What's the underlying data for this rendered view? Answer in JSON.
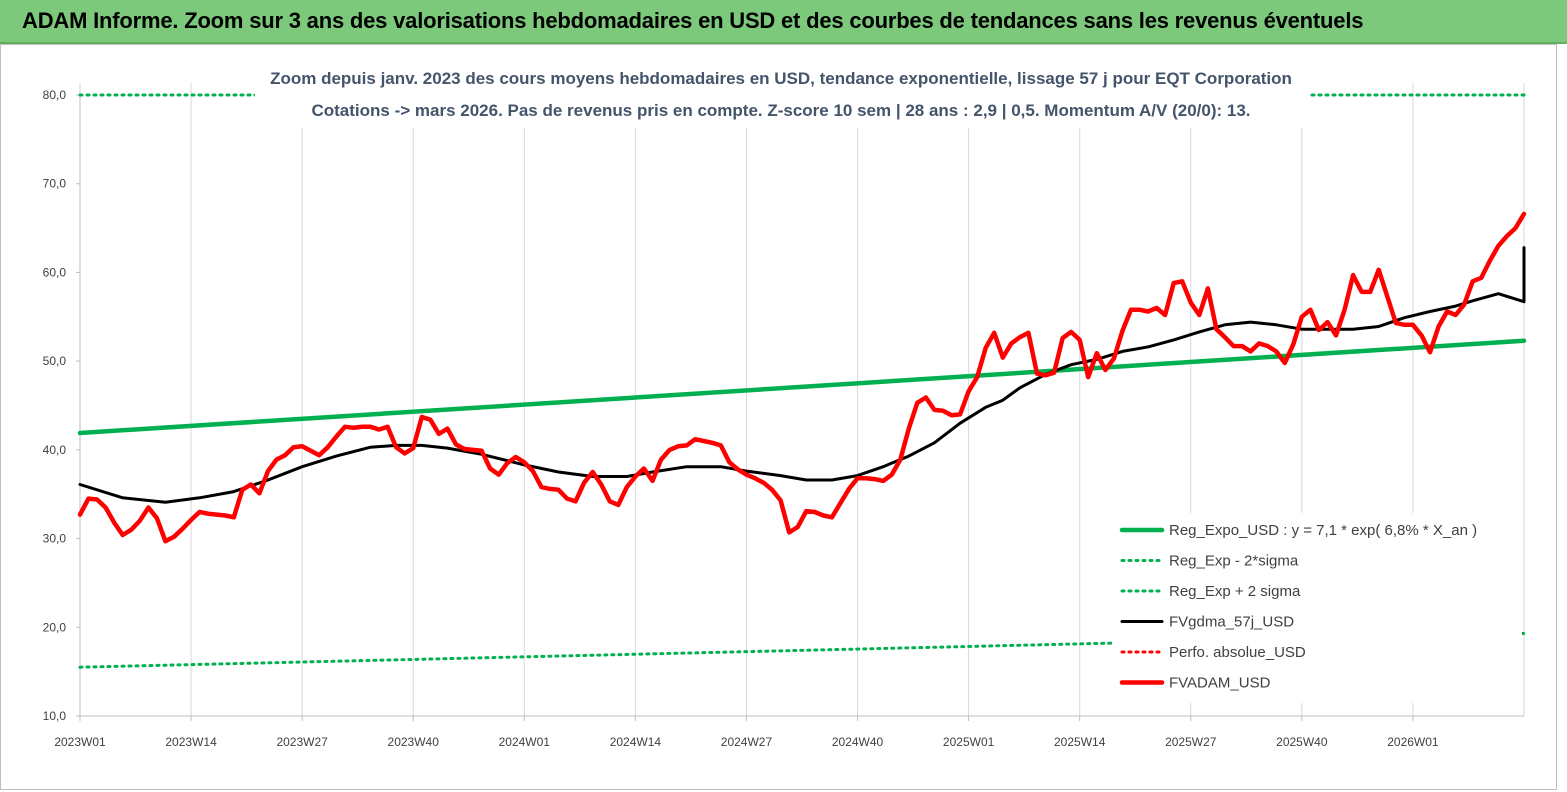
{
  "header": {
    "title": "ADAM Informe. Zoom sur 3 ans des valorisations hebdomadaires en USD et des courbes de tendances sans les revenus éventuels"
  },
  "colors": {
    "title_bg": "#7cc97b",
    "reg_expo": "#00b050",
    "fv_gdma": "#000000",
    "fv_adam": "#ff0000",
    "subtitle": "#44546a"
  },
  "chart_data": {
    "type": "line",
    "subtitle": [
      "Zoom depuis janv. 2023 des cours moyens hebdomadaires en USD, tendance exponentielle, lissage 57 j pour EQT Corporation",
      "Cotations -> mars 2026. Pas de revenus pris en  compte. Z-score 10 sem  | 28 ans : 2,9  | 0,5. Momentum A/V (20/0): 13."
    ],
    "ylim": [
      10,
      80
    ],
    "yticks": [
      "10,0",
      "20,0",
      "30,0",
      "40,0",
      "50,0",
      "60,0",
      "70,0",
      "80,0"
    ],
    "xticks": [
      "2023W01",
      "2023W14",
      "2023W27",
      "2023W40",
      "2024W01",
      "2024W14",
      "2024W27",
      "2024W40",
      "2025W01",
      "2025W14",
      "2025W27",
      "2025W40",
      "2026W01"
    ],
    "n_weeks": 170,
    "grid": "vertical",
    "legend_position": "bottom-right",
    "series": [
      {
        "name": "Reg_Expo_USD : y = 7,1 * exp( 6,8% *  X_an )",
        "style": "thick-solid",
        "color": "#00b050",
        "points": [
          [
            0,
            41.9
          ],
          [
            169,
            52.3
          ]
        ]
      },
      {
        "name": "Reg_Exp - 2*sigma",
        "style": "dotted",
        "color": "#00b050",
        "points": [
          [
            0,
            15.5
          ],
          [
            169,
            19.3
          ]
        ]
      },
      {
        "name": "Reg_Exp + 2 sigma",
        "style": "dotted",
        "color": "#00b050",
        "points": [
          [
            0,
            80.0
          ],
          [
            169,
            80.0
          ]
        ]
      },
      {
        "name": "FVgdma_57j_USD",
        "style": "solid",
        "color": "#000000",
        "points": [
          [
            0,
            36.1
          ],
          [
            5,
            34.6
          ],
          [
            10,
            34.1
          ],
          [
            14,
            34.6
          ],
          [
            18,
            35.3
          ],
          [
            22,
            36.6
          ],
          [
            26,
            38.1
          ],
          [
            30,
            39.3
          ],
          [
            34,
            40.3
          ],
          [
            37,
            40.5
          ],
          [
            40,
            40.5
          ],
          [
            43,
            40.2
          ],
          [
            47,
            39.5
          ],
          [
            52,
            38.3
          ],
          [
            56,
            37.5
          ],
          [
            60,
            37.0
          ],
          [
            64,
            37.0
          ],
          [
            67,
            37.5
          ],
          [
            71,
            38.1
          ],
          [
            75,
            38.1
          ],
          [
            78,
            37.6
          ],
          [
            82,
            37.1
          ],
          [
            85,
            36.6
          ],
          [
            88,
            36.6
          ],
          [
            91,
            37.1
          ],
          [
            94,
            38.1
          ],
          [
            97,
            39.3
          ],
          [
            100,
            40.8
          ],
          [
            103,
            43.0
          ],
          [
            106,
            44.8
          ],
          [
            108,
            45.6
          ],
          [
            110,
            47.0
          ],
          [
            113,
            48.5
          ],
          [
            116,
            49.6
          ],
          [
            119,
            50.2
          ],
          [
            122,
            51.1
          ],
          [
            125,
            51.6
          ],
          [
            128,
            52.4
          ],
          [
            131,
            53.3
          ],
          [
            134,
            54.1
          ],
          [
            137,
            54.4
          ],
          [
            140,
            54.1
          ],
          [
            143,
            53.6
          ],
          [
            146,
            53.6
          ],
          [
            149,
            53.6
          ],
          [
            152,
            53.9
          ],
          [
            155,
            54.9
          ],
          [
            158,
            55.6
          ],
          [
            161,
            56.2
          ],
          [
            163,
            56.8
          ],
          [
            166,
            57.6
          ],
          [
            169,
            56.7
          ],
          [
            172,
            57.0
          ],
          [
            175,
            58.0
          ],
          [
            178,
            59.6
          ],
          [
            181,
            61.2
          ],
          [
            169,
            62.8
          ]
        ]
      },
      {
        "name": "Perfo. absolue_USD",
        "style": "dotted",
        "color": "#ff0000",
        "points": []
      },
      {
        "name": "FVADAM_USD",
        "style": "thick-solid",
        "color": "#ff0000",
        "points": [
          [
            0,
            32.7
          ],
          [
            1,
            34.5
          ],
          [
            2,
            34.4
          ],
          [
            3,
            33.5
          ],
          [
            4,
            31.8
          ],
          [
            5,
            30.4
          ],
          [
            6,
            31.0
          ],
          [
            7,
            32.0
          ],
          [
            8,
            33.5
          ],
          [
            9,
            32.3
          ],
          [
            10,
            29.7
          ],
          [
            11,
            30.2
          ],
          [
            12,
            31.1
          ],
          [
            13,
            32.1
          ],
          [
            14,
            33.0
          ],
          [
            15,
            32.8
          ],
          [
            16,
            32.7
          ],
          [
            17,
            32.6
          ],
          [
            18,
            32.4
          ],
          [
            19,
            35.5
          ],
          [
            20,
            36.1
          ],
          [
            21,
            35.1
          ],
          [
            22,
            37.6
          ],
          [
            23,
            38.9
          ],
          [
            24,
            39.4
          ],
          [
            25,
            40.3
          ],
          [
            26,
            40.4
          ],
          [
            27,
            39.9
          ],
          [
            28,
            39.4
          ],
          [
            29,
            40.3
          ],
          [
            30,
            41.5
          ],
          [
            31,
            42.6
          ],
          [
            32,
            42.5
          ],
          [
            33,
            42.6
          ],
          [
            34,
            42.6
          ],
          [
            35,
            42.3
          ],
          [
            36,
            42.6
          ],
          [
            37,
            40.3
          ],
          [
            38,
            39.6
          ],
          [
            39,
            40.2
          ],
          [
            40,
            43.7
          ],
          [
            41,
            43.4
          ],
          [
            42,
            41.8
          ],
          [
            43,
            42.4
          ],
          [
            44,
            40.6
          ],
          [
            45,
            40.1
          ],
          [
            46,
            40.0
          ],
          [
            47,
            39.9
          ],
          [
            48,
            37.9
          ],
          [
            49,
            37.2
          ],
          [
            50,
            38.5
          ],
          [
            51,
            39.2
          ],
          [
            52,
            38.6
          ],
          [
            53,
            37.6
          ],
          [
            54,
            35.8
          ],
          [
            55,
            35.6
          ],
          [
            56,
            35.5
          ],
          [
            57,
            34.5
          ],
          [
            58,
            34.2
          ],
          [
            59,
            36.3
          ],
          [
            60,
            37.5
          ],
          [
            61,
            36.1
          ],
          [
            62,
            34.2
          ],
          [
            63,
            33.8
          ],
          [
            64,
            35.8
          ],
          [
            65,
            37.0
          ],
          [
            66,
            37.9
          ],
          [
            67,
            36.5
          ],
          [
            68,
            38.9
          ],
          [
            69,
            40.0
          ],
          [
            70,
            40.4
          ],
          [
            71,
            40.5
          ],
          [
            72,
            41.2
          ],
          [
            73,
            41.0
          ],
          [
            74,
            40.8
          ],
          [
            75,
            40.5
          ],
          [
            76,
            38.6
          ],
          [
            77,
            37.8
          ],
          [
            78,
            37.2
          ],
          [
            79,
            36.8
          ],
          [
            80,
            36.3
          ],
          [
            81,
            35.5
          ],
          [
            82,
            34.3
          ],
          [
            83,
            30.7
          ],
          [
            84,
            31.3
          ],
          [
            85,
            33.1
          ],
          [
            86,
            33.0
          ],
          [
            87,
            32.6
          ],
          [
            88,
            32.4
          ],
          [
            89,
            34.0
          ],
          [
            90,
            35.6
          ],
          [
            91,
            36.8
          ],
          [
            92,
            36.8
          ],
          [
            93,
            36.7
          ],
          [
            94,
            36.5
          ],
          [
            95,
            37.2
          ],
          [
            96,
            38.9
          ],
          [
            97,
            42.4
          ],
          [
            98,
            45.3
          ],
          [
            99,
            45.9
          ],
          [
            100,
            44.5
          ],
          [
            101,
            44.4
          ],
          [
            102,
            43.9
          ],
          [
            103,
            44.0
          ],
          [
            104,
            46.6
          ],
          [
            105,
            48.2
          ],
          [
            106,
            51.5
          ],
          [
            107,
            53.2
          ],
          [
            108,
            50.4
          ],
          [
            109,
            52.0
          ],
          [
            110,
            52.7
          ],
          [
            111,
            53.2
          ],
          [
            112,
            48.6
          ],
          [
            113,
            48.4
          ],
          [
            114,
            48.7
          ],
          [
            115,
            52.6
          ],
          [
            116,
            53.3
          ],
          [
            117,
            52.4
          ],
          [
            118,
            48.2
          ],
          [
            119,
            50.9
          ],
          [
            120,
            49.0
          ],
          [
            121,
            50.3
          ],
          [
            122,
            53.4
          ],
          [
            123,
            55.8
          ],
          [
            124,
            55.8
          ],
          [
            125,
            55.6
          ],
          [
            126,
            56.0
          ],
          [
            127,
            55.2
          ],
          [
            128,
            58.8
          ],
          [
            129,
            59.0
          ],
          [
            130,
            56.6
          ],
          [
            131,
            55.2
          ],
          [
            132,
            58.2
          ],
          [
            133,
            53.6
          ],
          [
            134,
            52.7
          ],
          [
            135,
            51.7
          ],
          [
            136,
            51.7
          ],
          [
            137,
            51.1
          ],
          [
            138,
            52.0
          ],
          [
            139,
            51.7
          ],
          [
            140,
            51.1
          ],
          [
            141,
            49.8
          ],
          [
            142,
            51.9
          ],
          [
            143,
            55.0
          ],
          [
            144,
            55.8
          ],
          [
            145,
            53.5
          ],
          [
            146,
            54.4
          ],
          [
            147,
            52.9
          ],
          [
            148,
            55.8
          ],
          [
            149,
            59.7
          ],
          [
            150,
            57.8
          ],
          [
            151,
            57.8
          ],
          [
            152,
            60.3
          ],
          [
            153,
            57.3
          ],
          [
            154,
            54.3
          ],
          [
            155,
            54.1
          ],
          [
            156,
            54.1
          ],
          [
            157,
            52.9
          ],
          [
            158,
            51.0
          ],
          [
            159,
            53.9
          ],
          [
            160,
            55.6
          ],
          [
            161,
            55.2
          ],
          [
            162,
            56.4
          ],
          [
            163,
            59.0
          ],
          [
            164,
            59.4
          ],
          [
            165,
            61.3
          ],
          [
            166,
            63.0
          ],
          [
            167,
            64.1
          ],
          [
            168,
            65.0
          ],
          [
            169,
            66.6
          ]
        ]
      }
    ]
  }
}
